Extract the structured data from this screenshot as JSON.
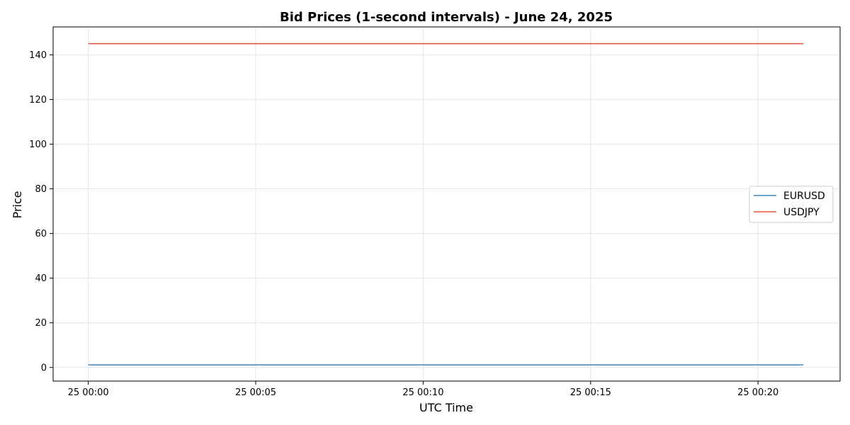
{
  "chart_data": {
    "type": "line",
    "title": "Bid Prices (1-second intervals) - June 24, 2025",
    "xlabel": "UTC Time",
    "ylabel": "Price",
    "x_range_minutes": [
      -1.05,
      22.45
    ],
    "ylim": [
      -6.1,
      152.5
    ],
    "x_ticks": [
      {
        "minute": 0,
        "label": "25 00:00"
      },
      {
        "minute": 5,
        "label": "25 00:05"
      },
      {
        "minute": 10,
        "label": "25 00:10"
      },
      {
        "minute": 15,
        "label": "25 00:15"
      },
      {
        "minute": 20,
        "label": "25 00:20"
      }
    ],
    "y_ticks": [
      0,
      20,
      40,
      60,
      80,
      100,
      120,
      140
    ],
    "grid": true,
    "legend_position": "center-right",
    "series": [
      {
        "name": "EURUSD",
        "color": "#3a84bf",
        "x_minutes": [
          0,
          21.35
        ],
        "values": [
          1.16,
          1.16
        ]
      },
      {
        "name": "USDJPY",
        "color": "#e5523c",
        "x_minutes": [
          0,
          21.35
        ],
        "values": [
          145.0,
          145.0
        ]
      }
    ]
  }
}
